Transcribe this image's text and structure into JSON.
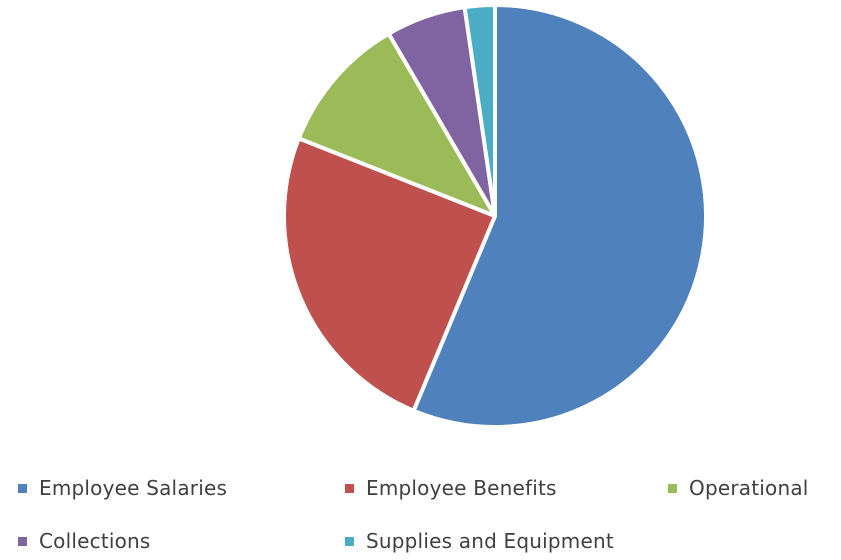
{
  "chart_data": {
    "type": "pie",
    "title": "",
    "start_angle_deg": 0,
    "direction": "clockwise",
    "legend_position": "bottom",
    "categories": [
      "Employee Salaries",
      "Employee Benefits",
      "Operational",
      "Collections",
      "Supplies and Equipment"
    ],
    "values": [
      56.3,
      24.7,
      10.6,
      6.1,
      2.3
    ],
    "colors": [
      "#4f81bd",
      "#c0504d",
      "#9bbb59",
      "#8064a2",
      "#4bacc6"
    ]
  }
}
